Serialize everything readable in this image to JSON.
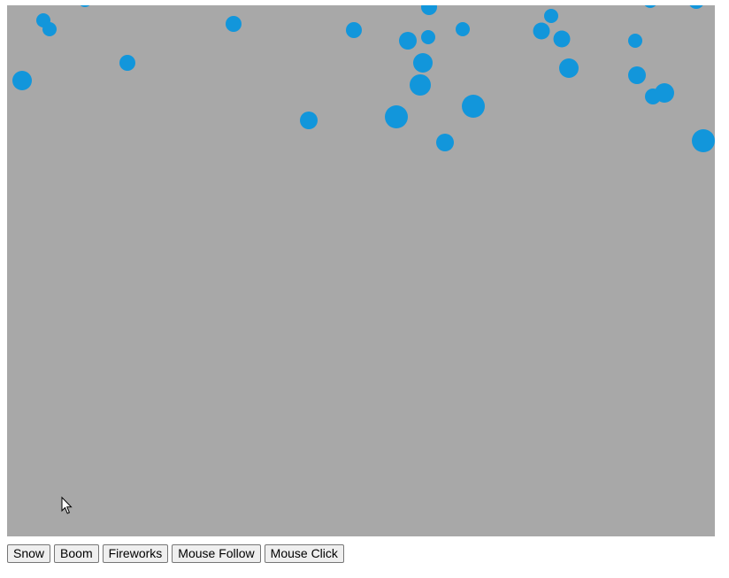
{
  "canvas": {
    "background": "#a8a8a8",
    "particle_color": "#1296db"
  },
  "buttons": [
    {
      "id": "snow",
      "label": "Snow"
    },
    {
      "id": "boom",
      "label": "Boom"
    },
    {
      "id": "fireworks",
      "label": "Fireworks"
    },
    {
      "id": "mouse-follow",
      "label": "Mouse Follow"
    },
    {
      "id": "mouse-click",
      "label": "Mouse Click"
    }
  ],
  "pointer": {
    "icon": "arrow-cursor-icon"
  }
}
